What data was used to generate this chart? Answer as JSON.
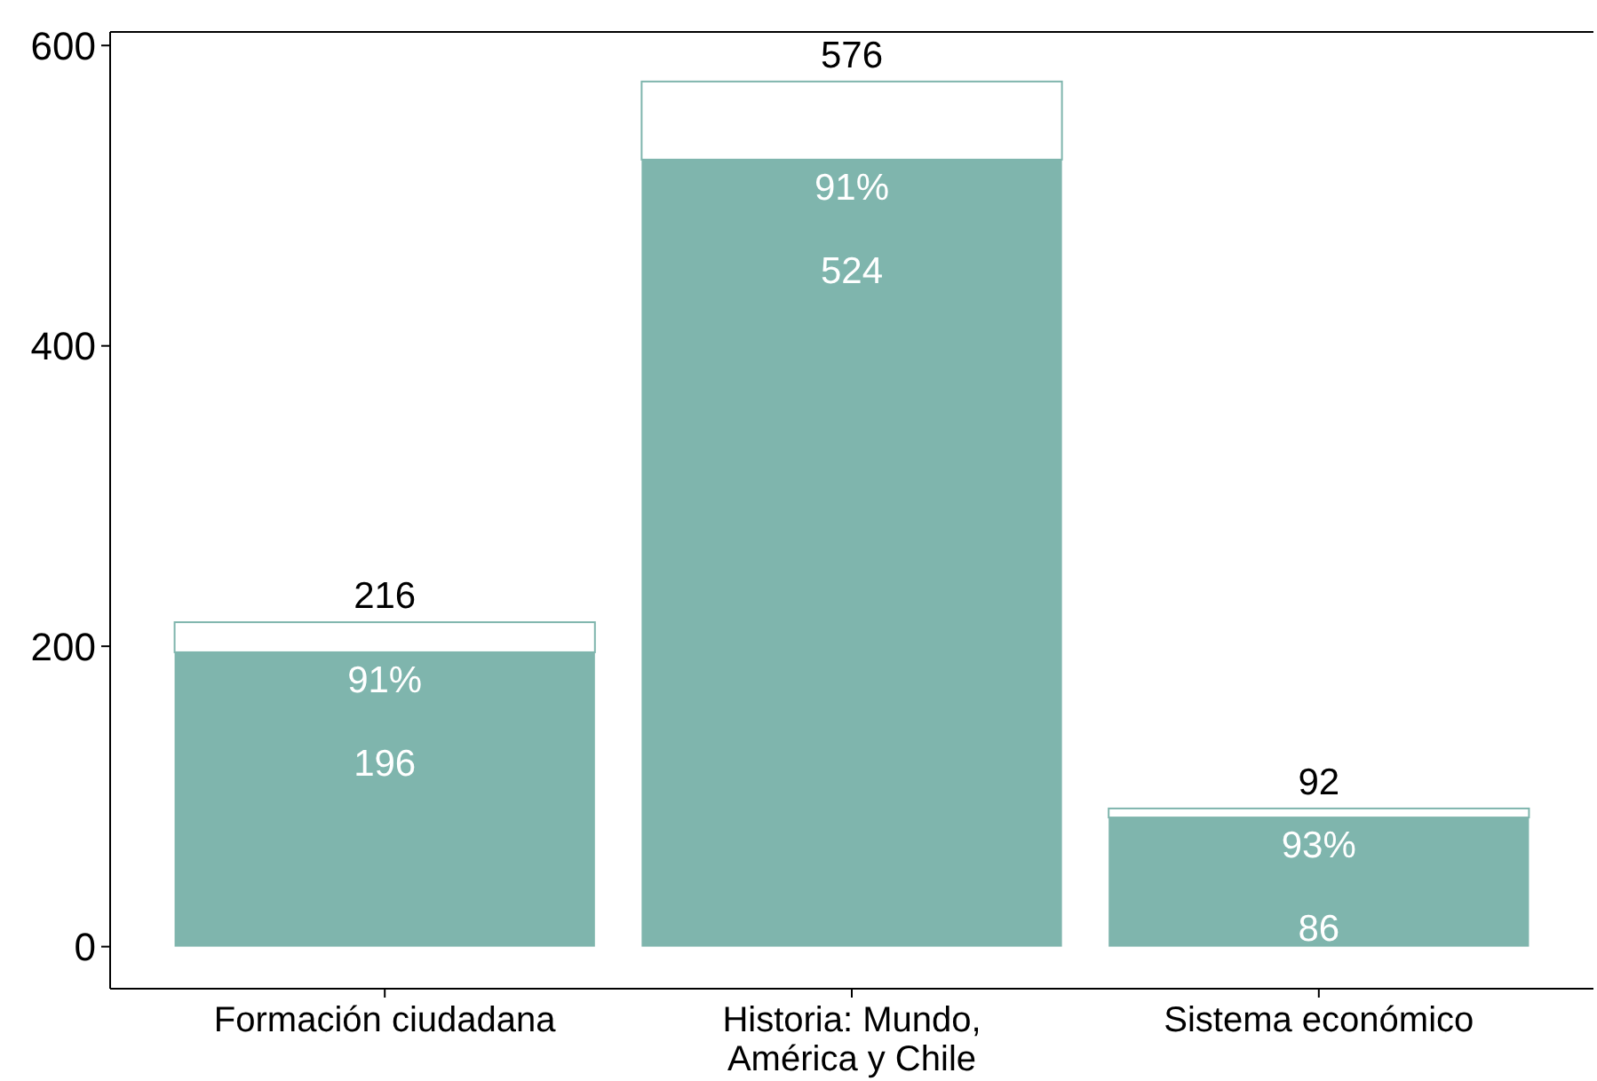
{
  "chart_data": {
    "type": "bar",
    "categories": [
      "Formación ciudadana",
      "Historia: Mundo, América y Chile",
      "Sistema económico"
    ],
    "series": [
      {
        "color": "#7fb5ad",
        "values": [
          196,
          524,
          86
        ],
        "value_labels": [
          "196",
          "524",
          "86"
        ]
      },
      {
        "color": "#ffffff",
        "values": [
          20,
          52,
          6
        ]
      }
    ],
    "stacked": true,
    "totals": [
      "216",
      "576",
      "92"
    ],
    "ylim": [
      -28,
      609
    ],
    "yticks": [
      0,
      200,
      400,
      600
    ],
    "grid": false,
    "annotations": [
      "91%",
      "91%",
      "93%"
    ]
  }
}
